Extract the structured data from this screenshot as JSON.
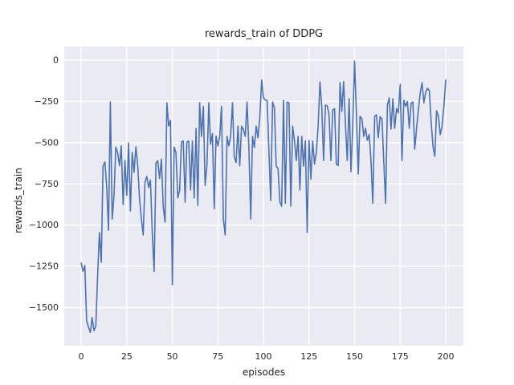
{
  "chart_data": {
    "type": "line",
    "title": "rewards_train of DDPG",
    "xlabel": "episodes",
    "ylabel": "rewards_train",
    "legend": null,
    "grid": true,
    "style": "seaborn-darkgrid",
    "axes_background": "#eaeaf2",
    "gridline_color": "#ffffff",
    "line_color": "#4c72b0",
    "text_color": "#262626",
    "x_ticks": [
      0,
      25,
      50,
      75,
      100,
      125,
      150,
      175,
      200
    ],
    "y_ticks": [
      0,
      -250,
      -500,
      -750,
      -1000,
      -1250,
      -1500
    ],
    "xlim": [
      -9.3,
      209.7
    ],
    "ylim": [
      -1731,
      83
    ],
    "x_start": 0,
    "x_step": 1,
    "series": [
      {
        "name": "rewards_train",
        "values": [
          -1230,
          -1280,
          -1245,
          -1580,
          -1620,
          -1650,
          -1560,
          -1640,
          -1610,
          -1313,
          -1045,
          -1225,
          -642,
          -617,
          -768,
          -1031,
          -253,
          -963,
          -817,
          -527,
          -560,
          -640,
          -519,
          -875,
          -608,
          -818,
          -501,
          -914,
          -559,
          -680,
          -525,
          -640,
          -835,
          -960,
          -1060,
          -740,
          -705,
          -772,
          -727,
          -1045,
          -1280,
          -623,
          -610,
          -717,
          -600,
          -885,
          -982,
          -258,
          -399,
          -365,
          -1362,
          -527,
          -560,
          -835,
          -787,
          -496,
          -490,
          -860,
          -496,
          -490,
          -787,
          -490,
          -835,
          -413,
          -880,
          -258,
          -462,
          -280,
          -760,
          -635,
          -258,
          -510,
          -445,
          -900,
          -460,
          -520,
          -460,
          -280,
          -963,
          -1060,
          -462,
          -520,
          -460,
          -258,
          -587,
          -620,
          -400,
          -640,
          -400,
          -420,
          -462,
          -253,
          -530,
          -963,
          -462,
          -530,
          -400,
          -470,
          -345,
          -120,
          -228,
          -240,
          -245,
          -560,
          -851,
          -253,
          -290,
          -642,
          -656,
          -860,
          -885,
          -243,
          -867,
          -253,
          -258,
          -885,
          -400,
          -486,
          -608,
          -462,
          -787,
          -462,
          -642,
          -490,
          -1045,
          -486,
          -721,
          -490,
          -630,
          -560,
          -400,
          -131,
          -289,
          -608,
          -272,
          -277,
          -331,
          -608,
          -301,
          -294,
          -630,
          -638,
          -136,
          -310,
          -130,
          -400,
          -608,
          -233,
          -676,
          -400,
          -5,
          -331,
          -690,
          -340,
          -355,
          -462,
          -413,
          -486,
          -450,
          -608,
          -867,
          -340,
          -331,
          -470,
          -343,
          -355,
          -608,
          -867,
          -272,
          -228,
          -418,
          -233,
          -413,
          -294,
          -319,
          -146,
          -608,
          -243,
          -280,
          -250,
          -413,
          -260,
          -253,
          -540,
          -413,
          -300,
          -200,
          -136,
          -258,
          -194,
          -170,
          -185,
          -374,
          -520,
          -583,
          -306,
          -340,
          -452,
          -400,
          -280,
          -120
        ]
      }
    ]
  }
}
